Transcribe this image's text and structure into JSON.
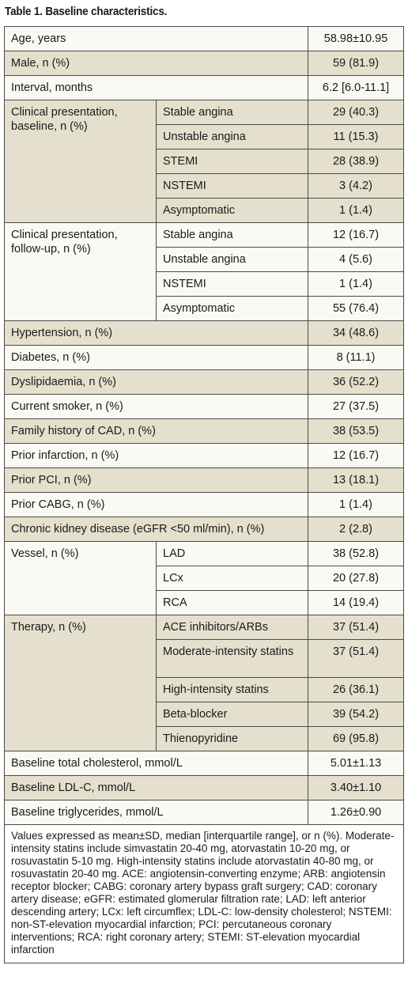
{
  "caption": "Table 1. Baseline characteristics.",
  "rows": {
    "age": {
      "label": "Age, years",
      "value": "58.98±10.95"
    },
    "male": {
      "label": "Male, n (%)",
      "value": "59 (81.9)"
    },
    "interval": {
      "label": "Interval, months",
      "value": "6.2 [6.0-11.1]"
    },
    "clin_base": {
      "label": "Clinical presentation, baseline, n (%)",
      "items": [
        {
          "label": "Stable angina",
          "value": "29 (40.3)"
        },
        {
          "label": "Unstable angina",
          "value": "11 (15.3)"
        },
        {
          "label": "STEMI",
          "value": "28 (38.9)"
        },
        {
          "label": "NSTEMI",
          "value": "3 (4.2)"
        },
        {
          "label": "Asymptomatic",
          "value": "1 (1.4)"
        }
      ]
    },
    "clin_follow": {
      "label": "Clinical presentation, follow-up, n (%)",
      "items": [
        {
          "label": "Stable angina",
          "value": "12 (16.7)"
        },
        {
          "label": "Unstable angina",
          "value": "4 (5.6)"
        },
        {
          "label": "NSTEMI",
          "value": "1 (1.4)"
        },
        {
          "label": "Asymptomatic",
          "value": "55 (76.4)"
        }
      ]
    },
    "hypertension": {
      "label": "Hypertension, n (%)",
      "value": "34 (48.6)"
    },
    "diabetes": {
      "label": "Diabetes, n (%)",
      "value": "8 (11.1)"
    },
    "dyslipidaemia": {
      "label": "Dyslipidaemia, n (%)",
      "value": "36 (52.2)"
    },
    "smoker": {
      "label": "Current smoker, n (%)",
      "value": "27 (37.5)"
    },
    "family": {
      "label": "Family history of CAD, n (%)",
      "value": "38 (53.5)"
    },
    "infarction": {
      "label": "Prior infarction, n (%)",
      "value": "12 (16.7)"
    },
    "pci": {
      "label": "Prior PCI, n (%)",
      "value": "13 (18.1)"
    },
    "cabg": {
      "label": "Prior CABG, n (%)",
      "value": "1 (1.4)"
    },
    "ckd": {
      "label": "Chronic kidney disease (eGFR <50 ml/min), n (%)",
      "value": "2 (2.8)"
    },
    "vessel": {
      "label": "Vessel, n (%)",
      "items": [
        {
          "label": "LAD",
          "value": "38 (52.8)"
        },
        {
          "label": "LCx",
          "value": "20 (27.8)"
        },
        {
          "label": "RCA",
          "value": "14 (19.4)"
        }
      ]
    },
    "therapy": {
      "label": "Therapy, n (%)",
      "items": [
        {
          "label": "ACE inhibitors/ARBs",
          "value": "37 (51.4)"
        },
        {
          "label": "Moderate-intensity statins",
          "value": "37 (51.4)"
        },
        {
          "label": "High-intensity statins",
          "value": "26 (36.1)"
        },
        {
          "label": "Beta-blocker",
          "value": "39 (54.2)"
        },
        {
          "label": "Thienopyridine",
          "value": "69 (95.8)"
        }
      ]
    },
    "chol": {
      "label": "Baseline total cholesterol, mmol/L",
      "value": "5.01±1.13"
    },
    "ldl": {
      "label": "Baseline LDL-C, mmol/L",
      "value": "3.40±1.10"
    },
    "tg": {
      "label": "Baseline triglycerides, mmol/L",
      "value": "1.26±0.90"
    }
  },
  "footnote": "Values expressed as mean±SD, median [interquartile range], or n (%). Moderate-intensity statins include simvastatin 20-40 mg, atorvastatin 10-20 mg, or rosuvastatin 5-10 mg. High-intensity statins include atorvastatin 40-80 mg, or rosuvastatin 20-40 mg. ACE: angiotensin-converting enzyme; ARB: angiotensin receptor blocker; CABG: coronary artery bypass graft surgery; CAD: coronary artery disease; eGFR: estimated glomerular filtration rate; LAD: left anterior descending artery; LCx: left circumflex; LDL-C: low-density cholesterol; NSTEMI: non-ST-elevation myocardial infarction; PCI: percutaneous coronary interventions; RCA: right coronary artery; STEMI: ST-elevation myocardial infarction"
}
